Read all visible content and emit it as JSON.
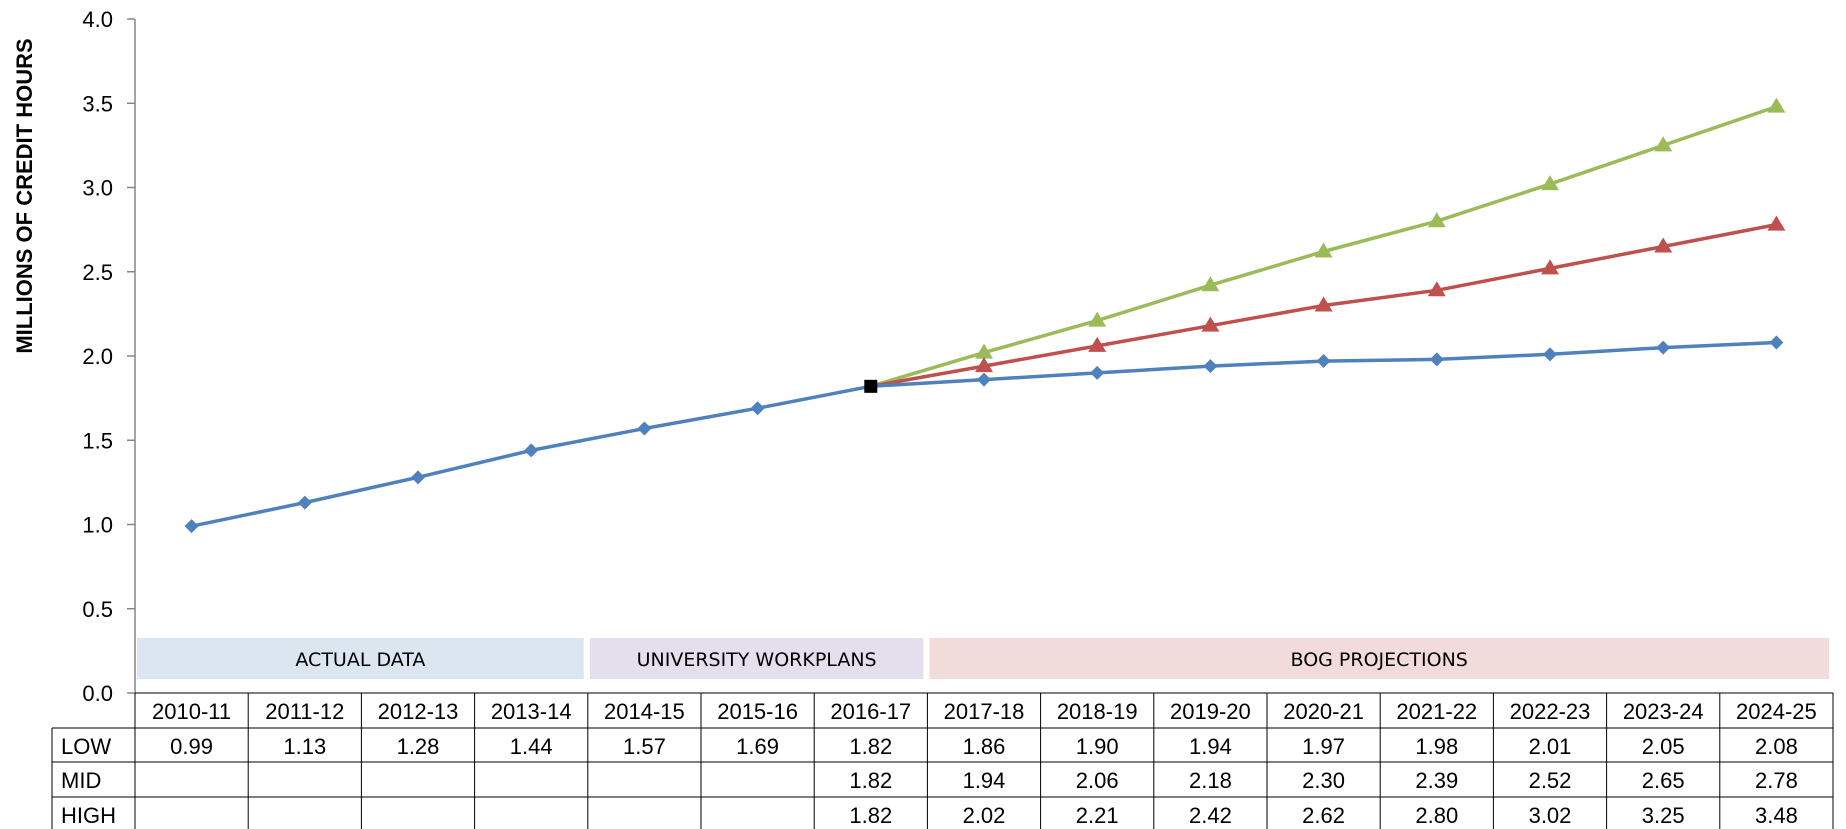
{
  "chart_data": {
    "type": "line",
    "title": "",
    "xlabel": "",
    "ylabel": "MILLIONS OF CREDIT HOURS",
    "ylim": [
      0,
      4.0
    ],
    "yticks": [
      "0.0",
      "0.5",
      "1.0",
      "1.5",
      "2.0",
      "2.5",
      "3.0",
      "3.5",
      "4.0"
    ],
    "categories": [
      "2010-11",
      "2011-12",
      "2012-13",
      "2013-14",
      "2014-15",
      "2015-16",
      "2016-17",
      "2017-18",
      "2018-19",
      "2019-20",
      "2020-21",
      "2021-22",
      "2022-23",
      "2023-24",
      "2024-25"
    ],
    "series": [
      {
        "name": "LOW",
        "color": "#4f81bd",
        "marker": "diamond",
        "values": [
          0.99,
          1.13,
          1.28,
          1.44,
          1.57,
          1.69,
          1.82,
          1.86,
          1.9,
          1.94,
          1.97,
          1.98,
          2.01,
          2.05,
          2.08
        ]
      },
      {
        "name": "MID",
        "color": "#c0504d",
        "marker": "triangle",
        "values": [
          null,
          null,
          null,
          null,
          null,
          null,
          1.82,
          1.94,
          2.06,
          2.18,
          2.3,
          2.39,
          2.52,
          2.65,
          2.78
        ]
      },
      {
        "name": "HIGH",
        "color": "#9bbb59",
        "marker": "triangle",
        "values": [
          null,
          null,
          null,
          null,
          null,
          null,
          1.82,
          2.02,
          2.21,
          2.42,
          2.62,
          2.8,
          3.02,
          3.25,
          3.48
        ]
      }
    ],
    "table": {
      "rows": [
        {
          "label": "LOW",
          "cells": [
            "0.99",
            "1.13",
            "1.28",
            "1.44",
            "1.57",
            "1.69",
            "1.82",
            "1.86",
            "1.90",
            "1.94",
            "1.97",
            "1.98",
            "2.01",
            "2.05",
            "2.08"
          ]
        },
        {
          "label": "MID",
          "cells": [
            "",
            "",
            "",
            "",
            "",
            "",
            "1.82",
            "1.94",
            "2.06",
            "2.18",
            "2.30",
            "2.39",
            "2.52",
            "2.65",
            "2.78"
          ]
        },
        {
          "label": "HIGH",
          "cells": [
            "",
            "",
            "",
            "",
            "",
            "",
            "1.82",
            "2.02",
            "2.21",
            "2.42",
            "2.62",
            "2.80",
            "3.02",
            "3.25",
            "3.48"
          ]
        }
      ]
    },
    "annotations": [
      {
        "text": "ACTUAL DATA",
        "from": 0,
        "to": 3,
        "color": "#dce6f1"
      },
      {
        "text": "UNIVERSITY WORKPLANS",
        "from": 4,
        "to": 6,
        "color": "#e4dfec"
      },
      {
        "text": "BOG PROJECTIONS",
        "from": 7,
        "to": 14,
        "color": "#f2dcdb"
      }
    ],
    "highlight_point": {
      "category": "2016-17",
      "value": 1.82,
      "color": "#000000"
    },
    "grid": false,
    "legend": "table"
  }
}
